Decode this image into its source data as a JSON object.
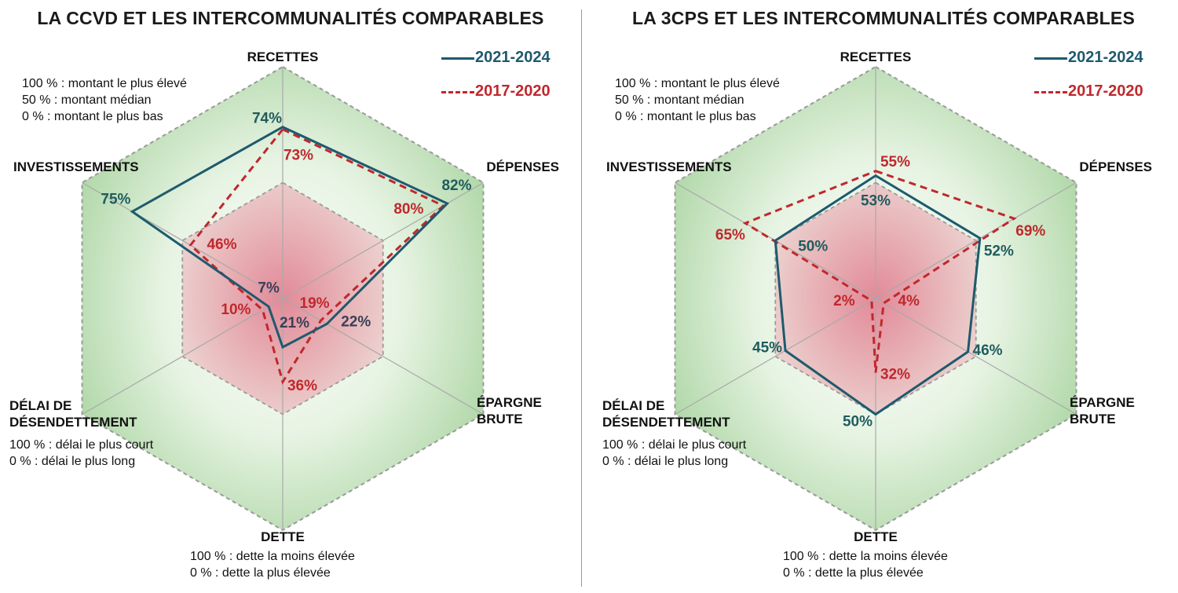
{
  "chart_data": [
    {
      "type": "radar",
      "title": "LA CCVD ET LES INTERCOMMUNALITÉS COMPARABLES",
      "axes": [
        "RECETTES",
        "DÉPENSES",
        "ÉPARGNE BRUTE",
        "DETTE",
        "DÉLAI DE DÉSENDETTEMENT",
        "INVESTISSEMENTS"
      ],
      "range": [
        0,
        100
      ],
      "series": [
        {
          "name": "2021-2024",
          "color": "#1e5a6e",
          "style": "solid",
          "values": [
            74,
            82,
            22,
            21,
            7,
            75
          ],
          "labels": [
            "74%",
            "82%",
            "22%",
            "21%",
            "7%",
            "75%"
          ]
        },
        {
          "name": "2017-2020",
          "color": "#c0282d",
          "style": "dashed",
          "values": [
            73,
            80,
            19,
            36,
            10,
            46
          ],
          "labels": [
            "73%",
            "80%",
            "19%",
            "36%",
            "10%",
            "46%"
          ]
        }
      ],
      "notes": {
        "recettes": [
          "100 % : montant le plus élevé",
          "50 % : montant médian",
          "0 % : montant le plus bas"
        ],
        "delai": [
          "100 % : délai le plus court",
          "0 % : délai le plus long"
        ],
        "dette": [
          "100 % : dette la moins élevée",
          "0 % : dette la plus élevée"
        ]
      },
      "legend_position": "top-right"
    },
    {
      "type": "radar",
      "title": "LA 3CPS ET LES INTERCOMMUNALITÉS COMPARABLES",
      "axes": [
        "RECETTES",
        "DÉPENSES",
        "ÉPARGNE BRUTE",
        "DETTE",
        "DÉLAI DE DÉSENDETTEMENT",
        "INVESTISSEMENTS"
      ],
      "range": [
        0,
        100
      ],
      "series": [
        {
          "name": "2021-2024",
          "color": "#1e5a6e",
          "style": "solid",
          "values": [
            53,
            52,
            46,
            50,
            45,
            50
          ],
          "labels": [
            "53%",
            "52%",
            "46%",
            "50%",
            "45%",
            "50%"
          ]
        },
        {
          "name": "2017-2020",
          "color": "#c0282d",
          "style": "dashed",
          "values": [
            55,
            69,
            4,
            32,
            2,
            65
          ],
          "labels": [
            "55%",
            "69%",
            "4%",
            "32%",
            "2%",
            "65%"
          ]
        }
      ],
      "notes": {
        "recettes": [
          "100 % : montant le plus élevé",
          "50 % : montant médian",
          "0 % : montant le plus bas"
        ],
        "delai": [
          "100 % : délai le plus court",
          "0 % : délai le plus long"
        ],
        "dette": [
          "100 % : dette la moins élevée",
          "0 % : dette la plus élevée"
        ]
      },
      "legend_position": "top-right"
    }
  ],
  "axis_display": {
    "recettes": "RECETTES",
    "depenses": "DÉPENSES",
    "epargne_1": "ÉPARGNE",
    "epargne_2": "BRUTE",
    "dette": "DETTE",
    "delai_1": "DÉLAI DE",
    "delai_2": "DÉSENDETTEMENT",
    "invest": "INVESTISSEMENTS"
  }
}
